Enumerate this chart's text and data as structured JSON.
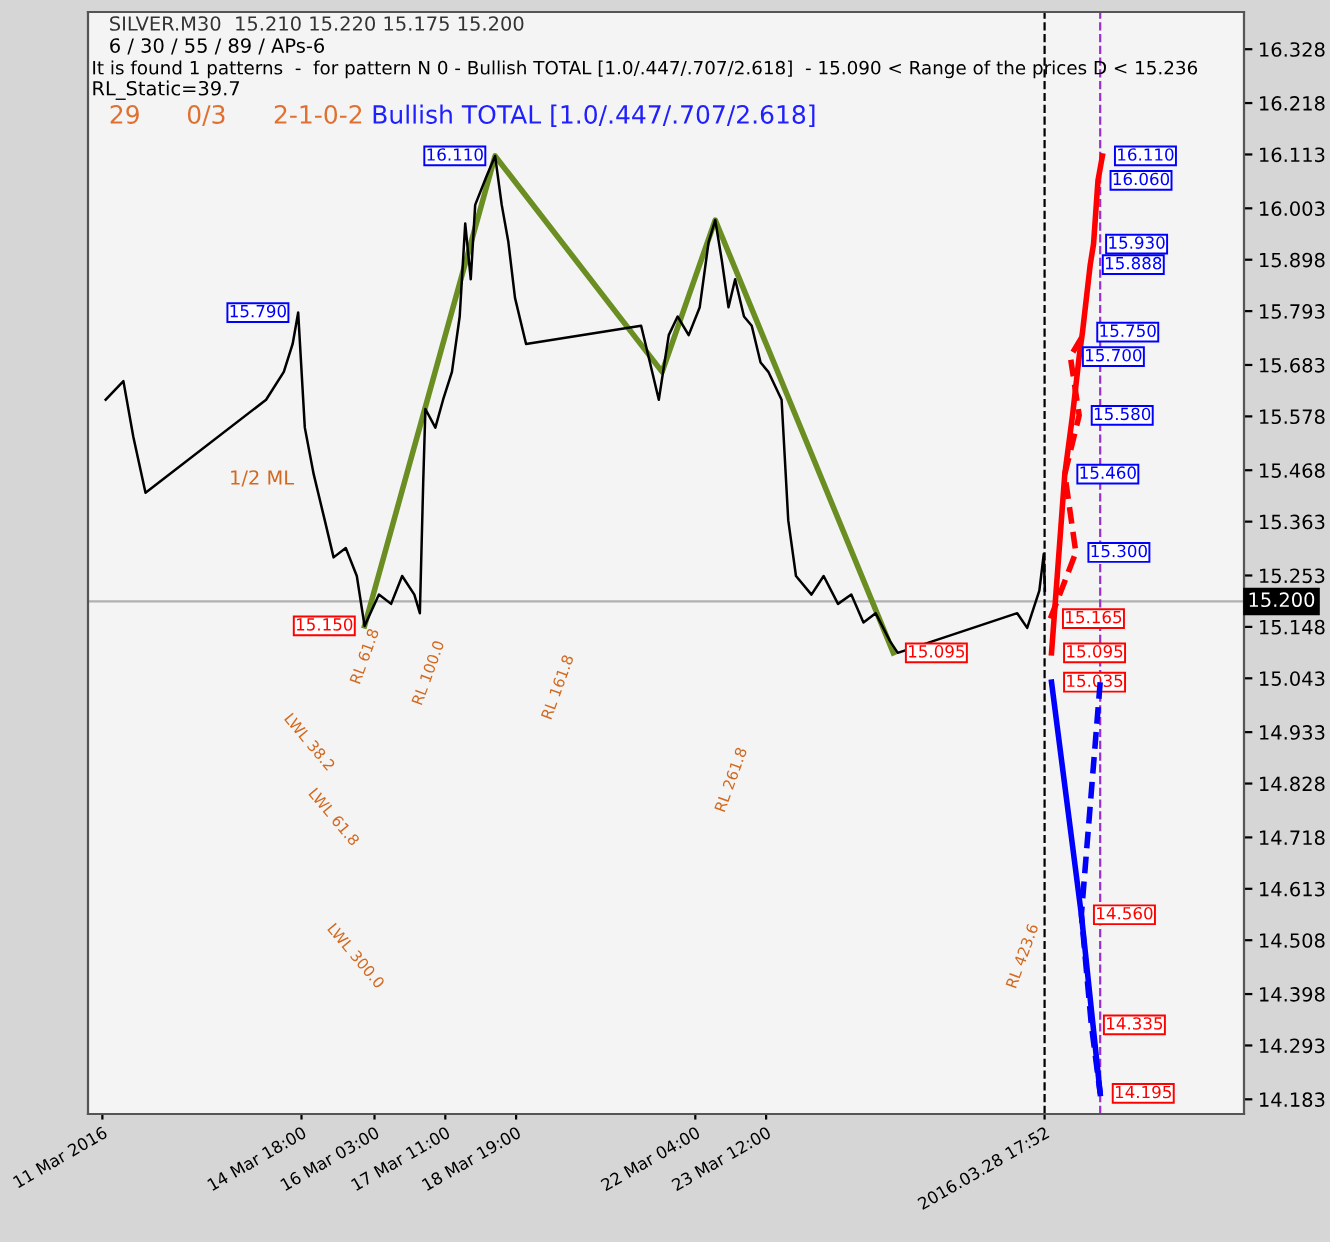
{
  "chart_data": {
    "type": "line",
    "annotations": [
      "SILVER.M30  15.210 15.220 15.175 15.200",
      "6 / 30 / 55 / 89 / APs-6",
      "It is found 1 patterns  -  for pattern N 0 - Bullish TOTAL [1.0/.447/.707/2.618]  - 15.090 < Range of the prices D < 15.236",
      "RL_Static=39.7",
      "29",
      "0/3",
      "2-1-0-2",
      "Bullish TOTAL [1.0/.447/.707/2.618]",
      "1/2 ML",
      "RL 61.8",
      "RL 100.0",
      "RL 161.8",
      "RL 261.8",
      "RL 423.6",
      "LWL 38.2",
      "LWL 61.8",
      "LWL 300.0"
    ],
    "series": [
      {
        "color": "#000000",
        "x": [
          "2016-03-11T01:30",
          "2016-03-11T09:30",
          "2016-03-11T14:00",
          "2016-03-11T19:30",
          "2016-03-14T02:00",
          "2016-03-14T10:00",
          "2016-03-14T14:00",
          "2016-03-14T16:30",
          "2016-03-14T19:30",
          "2016-03-14T23:30",
          "2016-03-15T04:30",
          "2016-03-15T08:30",
          "2016-03-15T14:00",
          "2016-03-15T19:00",
          "2016-03-15T22:30",
          "2016-03-16T05:00",
          "2016-03-16T10:30",
          "2016-03-16T15:30",
          "2016-03-16T21:00",
          "2016-03-16T23:30",
          "2016-03-17T01:00",
          "2016-03-17T02:00",
          "2016-03-17T06:30",
          "2016-03-17T10:00",
          "2016-03-17T14:00",
          "2016-03-17T17:30",
          "2016-03-17T20:00",
          "2016-03-17T22:30",
          "2016-03-18T00:30",
          "2016-03-18T05:30",
          "2016-03-18T09:30",
          "2016-03-18T12:30",
          "2016-03-18T15:30",
          "2016-03-18T18:30",
          "2016-03-18T23:30",
          "2016-03-21T03:30",
          "2016-03-21T06:30",
          "2016-03-21T11:30",
          "2016-03-21T16:00",
          "2016-03-21T20:00",
          "2016-03-22T01:00",
          "2016-03-22T06:00",
          "2016-03-22T10:00",
          "2016-03-22T13:00",
          "2016-03-22T16:00",
          "2016-03-22T19:00",
          "2016-03-22T22:00",
          "2016-03-23T02:00",
          "2016-03-23T05:30",
          "2016-03-23T09:30",
          "2016-03-23T13:00",
          "2016-03-23T19:00",
          "2016-03-23T22:00",
          "2016-03-24T01:30",
          "2016-03-24T08:30",
          "2016-03-24T14:00",
          "2016-03-24T20:30",
          "2016-03-25T02:30",
          "2016-03-25T08:00",
          "2016-03-25T13:30",
          "2016-03-25T20:00",
          "2016-03-25T23:30",
          "2016-03-28T05:30",
          "2016-03-28T10:00",
          "2016-03-28T15:30",
          "2016-03-28T17:30",
          "2016-03-28T18:00"
        ],
        "values": [
          15.612,
          15.65,
          15.536,
          15.422,
          15.612,
          15.669,
          15.726,
          15.79,
          15.555,
          15.46,
          15.366,
          15.29,
          15.309,
          15.252,
          15.15,
          15.214,
          15.195,
          15.252,
          15.214,
          15.176,
          15.441,
          15.593,
          15.555,
          15.612,
          15.669,
          15.782,
          15.972,
          15.858,
          16.01,
          16.067,
          16.11,
          16.01,
          15.934,
          15.82,
          15.726,
          15.763,
          15.707,
          15.612,
          15.744,
          15.782,
          15.744,
          15.801,
          15.934,
          15.979,
          15.896,
          15.801,
          15.858,
          15.782,
          15.763,
          15.688,
          15.669,
          15.612,
          15.366,
          15.252,
          15.214,
          15.252,
          15.195,
          15.214,
          15.157,
          15.176,
          15.119,
          15.095,
          15.176,
          15.146,
          15.222,
          15.297,
          15.222
        ],
        "value_labels": [
          null,
          null,
          null,
          null,
          null,
          null,
          null,
          "15.790",
          null,
          null,
          null,
          null,
          null,
          null,
          null,
          null,
          null,
          null,
          null,
          null,
          null,
          null,
          null,
          null,
          null,
          null,
          null,
          null,
          null,
          null,
          null,
          null,
          null,
          null,
          null,
          null,
          null,
          null,
          null,
          null,
          null,
          null,
          null,
          null,
          null,
          null,
          null,
          null,
          null,
          null,
          null,
          null,
          null,
          null,
          null,
          null,
          null,
          null,
          null,
          null,
          null,
          null,
          null,
          null,
          null,
          null,
          null
        ]
      },
      {
        "color": "#6b8e23",
        "x": [
          "2016-03-15T22:30",
          "2016-03-18T09:30",
          "2016-03-21T13:00",
          "2016-03-22T13:00",
          "2016-03-25T21:30"
        ],
        "values": [
          15.15,
          16.11,
          15.669,
          15.979,
          15.095
        ],
        "value_labels": [
          "15.150",
          "16.110",
          null,
          null,
          "15.095"
        ]
      },
      {
        "color": "#ff0000",
        "x": [
          "2016-03-28T21:00",
          "2016-03-29T03:00",
          "2016-03-29T06:30",
          "2016-03-29T09:30",
          "2016-03-29T11:00",
          "2016-03-29T14:30",
          "2016-03-29T16:00",
          "2016-03-29T18:00",
          "2016-03-29T20:00"
        ],
        "values": [
          15.095,
          15.46,
          15.58,
          15.7,
          15.75,
          15.888,
          15.93,
          16.06,
          16.11
        ],
        "value_labels": [
          "15.095",
          null,
          null,
          null,
          null,
          "15.888",
          "15.930",
          "16.060",
          "16.110"
        ]
      },
      {
        "color": "#ff0000",
        "line_style": "dashed",
        "x": [
          "2016-03-28T20:30",
          "2016-03-29T08:00",
          "2016-03-29T03:00",
          "2016-03-29T09:30",
          "2016-03-29T05:30",
          "2016-03-29T12:00"
        ],
        "values": [
          15.165,
          15.3,
          15.46,
          15.58,
          15.7,
          15.75
        ],
        "value_labels": [
          "15.165",
          "15.300",
          "15.460",
          "15.580",
          "15.700",
          "15.750"
        ]
      },
      {
        "color": "#0000ff",
        "x": [
          "2016-03-28T21:00",
          "2016-03-29T10:30",
          "2016-03-29T19:00"
        ],
        "values": [
          15.035,
          14.56,
          14.195
        ],
        "value_labels": [
          "15.035",
          "14.560",
          "14.195"
        ]
      },
      {
        "color": "#0000ff",
        "line_style": "dashed",
        "x": [
          "2016-03-29T19:00",
          "2016-03-29T10:30",
          "2016-03-29T15:00",
          "2016-03-29T19:00"
        ],
        "values": [
          15.035,
          14.56,
          14.335,
          14.195
        ],
        "value_labels": [
          null,
          null,
          "14.335",
          null
        ]
      }
    ],
    "ref_lines": [
      {
        "axis": "y",
        "value": 15.2,
        "label": "15.200",
        "color": "#b0b0b0"
      },
      {
        "axis": "x",
        "value": "2016-03-28T17:52",
        "color": "#000000",
        "line_style": "dashed"
      },
      {
        "axis": "x",
        "value": "2016-03-29T19:00",
        "color": "#9932cc",
        "line_style": "dashed"
      }
    ],
    "xlim": [
      "2016-03-10T17:30",
      "2016-04-01T12:00"
    ],
    "xticks": [
      {
        "value": "2016-03-11T00:00",
        "label": "11 Mar 2016"
      },
      {
        "value": "2016-03-14T18:00",
        "label": "14 Mar 18:00"
      },
      {
        "value": "2016-03-16T03:00",
        "label": "16 Mar 03:00"
      },
      {
        "value": "2016-03-17T11:00",
        "label": "17 Mar 11:00"
      },
      {
        "value": "2016-03-18T19:00",
        "label": "18 Mar 19:00"
      },
      {
        "value": "2016-03-22T04:00",
        "label": "22 Mar 04:00"
      },
      {
        "value": "2016-03-23T12:00",
        "label": "23 Mar 12:00"
      },
      {
        "value": "2016-03-28T17:52",
        "label": "2016.03.28 17:52"
      }
    ],
    "ylim": [
      14.153,
      16.404
    ],
    "yticks": [
      16.328,
      16.218,
      16.113,
      16.003,
      15.898,
      15.793,
      15.683,
      15.578,
      15.468,
      15.363,
      15.253,
      15.148,
      15.043,
      14.933,
      14.828,
      14.718,
      14.613,
      14.508,
      14.398,
      14.293,
      14.183
    ],
    "grid": false,
    "legend": false
  }
}
